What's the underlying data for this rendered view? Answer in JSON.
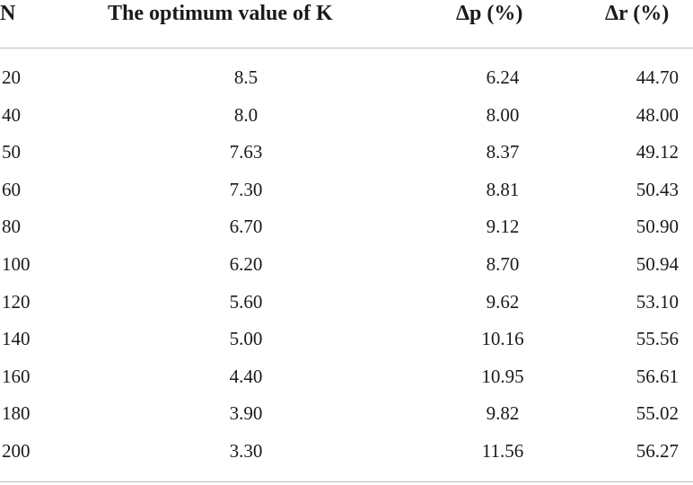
{
  "table": {
    "headers": {
      "n": "N",
      "k": "The optimum value of K",
      "dp": "Δp (%)",
      "dr": "Δr (%)"
    },
    "rows": [
      {
        "n": "20",
        "k": "8.5",
        "dp": "6.24",
        "dr": "44.70"
      },
      {
        "n": "40",
        "k": "8.0",
        "dp": "8.00",
        "dr": "48.00"
      },
      {
        "n": "50",
        "k": "7.63",
        "dp": "8.37",
        "dr": "49.12"
      },
      {
        "n": "60",
        "k": "7.30",
        "dp": "8.81",
        "dr": "50.43"
      },
      {
        "n": "80",
        "k": "6.70",
        "dp": "9.12",
        "dr": "50.90"
      },
      {
        "n": "100",
        "k": "6.20",
        "dp": "8.70",
        "dr": "50.94"
      },
      {
        "n": "120",
        "k": "5.60",
        "dp": "9.62",
        "dr": "53.10"
      },
      {
        "n": "140",
        "k": "5.00",
        "dp": "10.16",
        "dr": "55.56"
      },
      {
        "n": "160",
        "k": "4.40",
        "dp": "10.95",
        "dr": "56.61"
      },
      {
        "n": "180",
        "k": "3.90",
        "dp": "9.82",
        "dr": "55.02"
      },
      {
        "n": "200",
        "k": "3.30",
        "dp": "11.56",
        "dr": "56.27"
      }
    ]
  }
}
